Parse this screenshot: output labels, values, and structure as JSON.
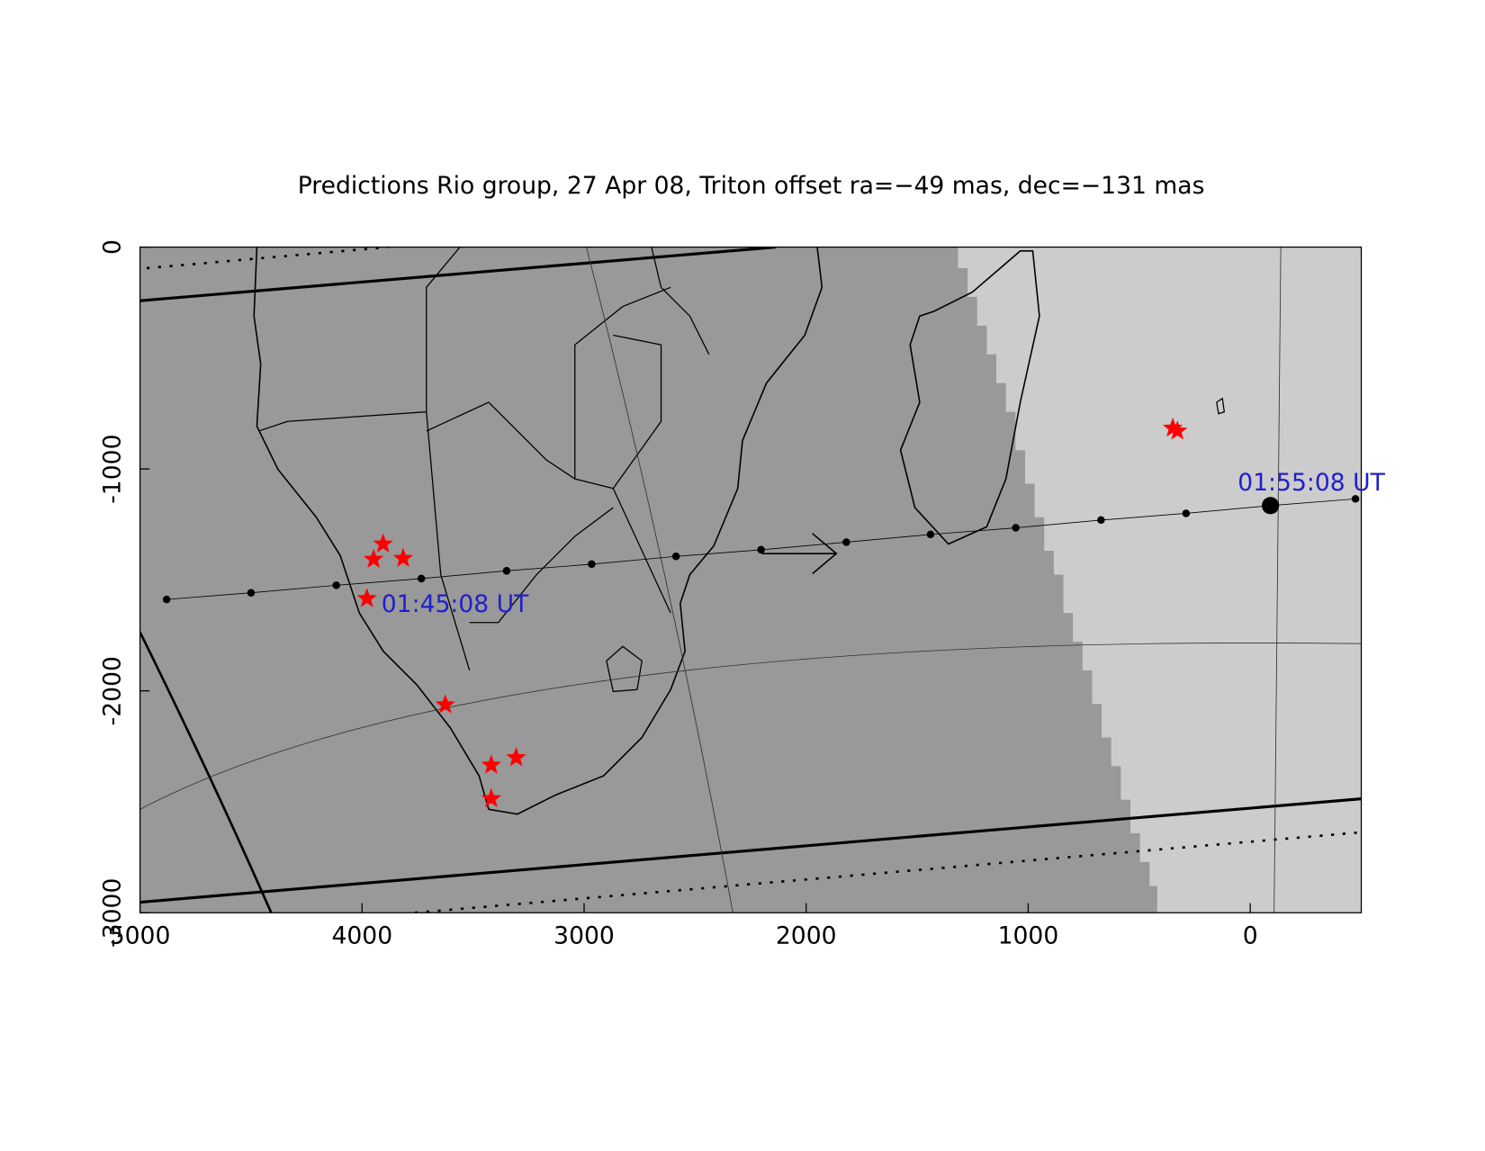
{
  "chart_data": {
    "type": "scatter",
    "title": "Predictions Rio group, 27 Apr 08, Triton offset ra=−49 mas, dec=−131 mas",
    "xlim": [
      5000,
      -500
    ],
    "ylim": [
      -3000,
      0
    ],
    "xticks": [
      5000,
      4000,
      3000,
      2000,
      1000,
      0
    ],
    "yticks": [
      0,
      -1000,
      -2000,
      -3000
    ],
    "series": [
      {
        "color": "#000000",
        "x": [
          4880,
          4500,
          4116,
          3733,
          3349,
          2966,
          2586,
          2203,
          1819,
          1440,
          1056,
          672,
          289,
          -91,
          -474
        ],
        "values": [
          -1588,
          -1558,
          -1524,
          -1494,
          -1459,
          -1429,
          -1394,
          -1364,
          -1330,
          -1295,
          -1265,
          -1230,
          -1200,
          -1165,
          -1135
        ]
      },
      {
        "color": "#ff0000",
        "x": [
          3905,
          3948,
          3815,
          3978,
          3625,
          3418,
          3306,
          3418,
          349,
          328
        ],
        "values": [
          -1338,
          -1407,
          -1403,
          -1584,
          -2063,
          -2335,
          -2301,
          -2486,
          -816,
          -829
        ]
      }
    ],
    "annotations": [
      {
        "text": "01:45:08 UT",
        "color": "#2020cc"
      },
      {
        "text": "01:55:08 UT",
        "color": "#2020cc"
      }
    ]
  }
}
